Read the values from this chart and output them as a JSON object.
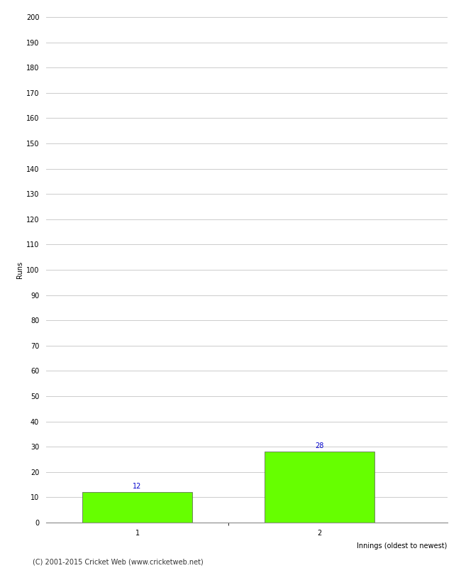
{
  "categories": [
    1,
    2
  ],
  "values": [
    12,
    28
  ],
  "bar_color": "#66ff00",
  "bar_edge_color": "#555555",
  "ylabel": "Runs",
  "xlabel": "Innings (oldest to newest)",
  "ylim": [
    0,
    200
  ],
  "yticks": [
    0,
    10,
    20,
    30,
    40,
    50,
    60,
    70,
    80,
    90,
    100,
    110,
    120,
    130,
    140,
    150,
    160,
    170,
    180,
    190,
    200
  ],
  "xticks": [
    1,
    2
  ],
  "annotation_color": "#0000cc",
  "annotation_fontsize": 7,
  "footer_text": "(C) 2001-2015 Cricket Web (www.cricketweb.net)",
  "background_color": "#ffffff",
  "grid_color": "#cccccc",
  "bar_width": 0.6
}
